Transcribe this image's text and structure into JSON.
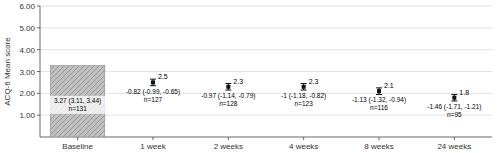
{
  "chart_data": {
    "type": "bar",
    "categories": [
      "Baseline",
      "1 week",
      "2 weeks",
      "4 weeks",
      "8 weeks",
      "24 weeks"
    ],
    "ylabel": "ACQ-6 Mean score",
    "ylim": [
      0.0,
      6.0
    ],
    "yticks": [
      {
        "value": 1.0,
        "label": "1.00"
      },
      {
        "value": 2.0,
        "label": "2.00"
      },
      {
        "value": 3.0,
        "label": "3.00"
      },
      {
        "value": 4.0,
        "label": "4.00"
      },
      {
        "value": 5.0,
        "label": "5.00"
      },
      {
        "value": 6.0,
        "label": "6.00"
      }
    ],
    "grid": true,
    "data_labels": true,
    "series": [
      {
        "type": "bar",
        "color": "#c0c0c0",
        "values": [
          3.27,
          null,
          null,
          null,
          null,
          null
        ],
        "value_labels": [
          "3.27 (3.11, 3.44)\nn=131",
          null,
          null,
          null,
          null,
          null
        ]
      },
      {
        "type": "scatter",
        "color": "#111111",
        "marker": "square",
        "values": [
          null,
          2.5,
          2.3,
          2.3,
          2.1,
          1.8
        ],
        "error_bars": [
          null,
          [
            2.35,
            2.65
          ],
          [
            2.15,
            2.45
          ],
          [
            2.15,
            2.45
          ],
          [
            1.95,
            2.25
          ],
          [
            1.65,
            1.95
          ]
        ],
        "value_labels": [
          null,
          "2.5",
          "2.3",
          "2.3",
          "2.1",
          "1.8"
        ]
      }
    ],
    "annotations": [
      {
        "category": "1 week",
        "text": "-0.82 (-0.99, -0.65)\nn=127"
      },
      {
        "category": "2 weeks",
        "text": "-0.97 (-1.14, -0.79)\nn=128"
      },
      {
        "category": "4 weeks",
        "text": "-1 (-1.18, -0.82)\nn=123"
      },
      {
        "category": "8 weeks",
        "text": "-1.13 (-1.32, -0.94)\nn=116"
      },
      {
        "category": "24 weeks",
        "text": "-1.46 (-1.71, -1.21)\nn=95"
      }
    ]
  }
}
